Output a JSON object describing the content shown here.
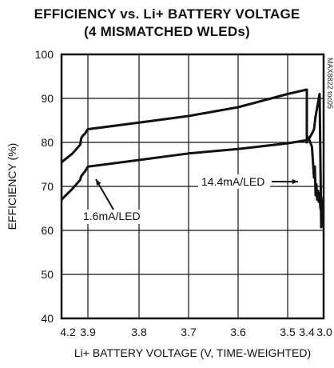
{
  "chart_data": {
    "type": "line",
    "title": "EFFICIENCY vs. Li+ BATTERY VOLTAGE",
    "subtitle": "(4 MISMATCHED WLEDs)",
    "xlabel": "Li+ BATTERY VOLTAGE (V, TIME-WEIGHTED)",
    "ylabel": "EFFICIENCY (%)",
    "xlim": [
      4.2,
      3.0
    ],
    "ylim": [
      40,
      100
    ],
    "x_reversed": true,
    "xticks": [
      "4.2",
      "3.9",
      "3.8",
      "3.7",
      "3.6",
      "3.5",
      "3.4",
      "3.0"
    ],
    "yticks": [
      "100",
      "90",
      "80",
      "70",
      "60",
      "50",
      "40"
    ],
    "grid": true,
    "reference_code": "MAX8822 toc05",
    "series": [
      {
        "name": "14.4mA/LED",
        "x": [
          4.2,
          4.17,
          4.14,
          4.11,
          4.08,
          4.05,
          4.0,
          3.9,
          3.8,
          3.7,
          3.6,
          3.5,
          3.44,
          3.42,
          3.41,
          3.4,
          3.38,
          3.36,
          3.34,
          3.32,
          3.3,
          3.29,
          3.28,
          3.27,
          3.25
        ],
        "values": [
          75.5,
          77.5,
          79.5,
          80.9,
          81.3,
          81.6,
          81.9,
          83.0,
          84.5,
          86.0,
          88.0,
          91.0,
          92.0,
          80.0,
          81.5,
          80.5,
          81.0,
          82.0,
          83.0,
          86.0,
          88.0,
          89.0,
          90.0,
          91.0,
          60.5
        ]
      },
      {
        "name": "1.6mA/LED",
        "x": [
          4.2,
          4.17,
          4.14,
          4.11,
          4.08,
          4.05,
          4.0,
          3.9,
          3.8,
          3.7,
          3.6,
          3.5,
          3.44,
          3.42,
          3.4,
          3.38,
          3.36,
          3.34,
          3.33,
          3.32,
          3.31,
          3.3,
          3.29,
          3.28,
          3.27,
          3.26,
          3.25,
          3.24,
          3.23,
          3.22
        ],
        "values": [
          67.0,
          69.5,
          71.5,
          72.3,
          72.6,
          72.9,
          73.3,
          74.5,
          76.0,
          77.5,
          78.5,
          79.8,
          80.5,
          81.0,
          81.5,
          80.5,
          79.0,
          72.0,
          74.5,
          68.0,
          70.5,
          67.0,
          69.0,
          66.5,
          68.5,
          65.0,
          67.5,
          61.0,
          64.5,
          67.0
        ]
      }
    ],
    "annotations": [
      "14.4mA/LED",
      "1.6mA/LED"
    ]
  }
}
